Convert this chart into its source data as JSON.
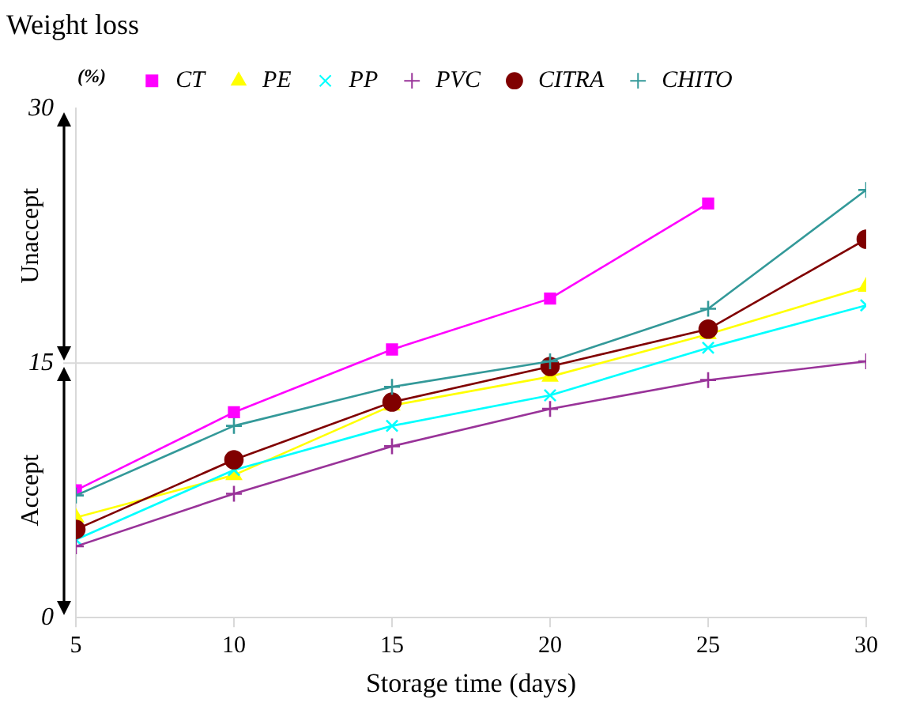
{
  "chart_data": {
    "type": "line",
    "title": "Weight loss",
    "ylabel": "(%)",
    "xlabel": "Storage time (days)",
    "x": [
      5,
      10,
      15,
      20,
      25,
      30
    ],
    "xlim": [
      5,
      30
    ],
    "xticks": [
      5,
      10,
      15,
      20,
      25,
      30
    ],
    "ylim": [
      0,
      30
    ],
    "yticks": [
      0,
      15,
      30
    ],
    "grid": false,
    "legend": "top",
    "series": [
      {
        "name": "CT",
        "color": "#ff00ff",
        "marker": "square",
        "values": [
          7.5,
          12.1,
          15.8,
          18.8,
          24.4,
          null
        ]
      },
      {
        "name": "PE",
        "color": "#ffff00",
        "marker": "triangle",
        "values": [
          5.9,
          8.4,
          12.5,
          14.2,
          16.7,
          19.5
        ]
      },
      {
        "name": "PP",
        "color": "#00ffff",
        "marker": "x",
        "values": [
          4.6,
          8.7,
          11.3,
          13.1,
          15.9,
          18.4
        ]
      },
      {
        "name": "PVC",
        "color": "#993399",
        "marker": "cross",
        "values": [
          4.2,
          7.3,
          10.1,
          12.3,
          14.0,
          15.1
        ]
      },
      {
        "name": "CITRA",
        "color": "#800000",
        "marker": "circle",
        "values": [
          5.2,
          9.3,
          12.7,
          14.8,
          17.0,
          22.3
        ]
      },
      {
        "name": "CHITO",
        "color": "#339999",
        "marker": "cross",
        "values": [
          7.2,
          11.3,
          13.6,
          15.1,
          18.2,
          25.2
        ]
      }
    ],
    "ref_lines": [
      {
        "axis": "y",
        "value": 15,
        "color": "#d9d9d9"
      }
    ],
    "annotations": [
      "Unaccept",
      "Accept"
    ]
  }
}
